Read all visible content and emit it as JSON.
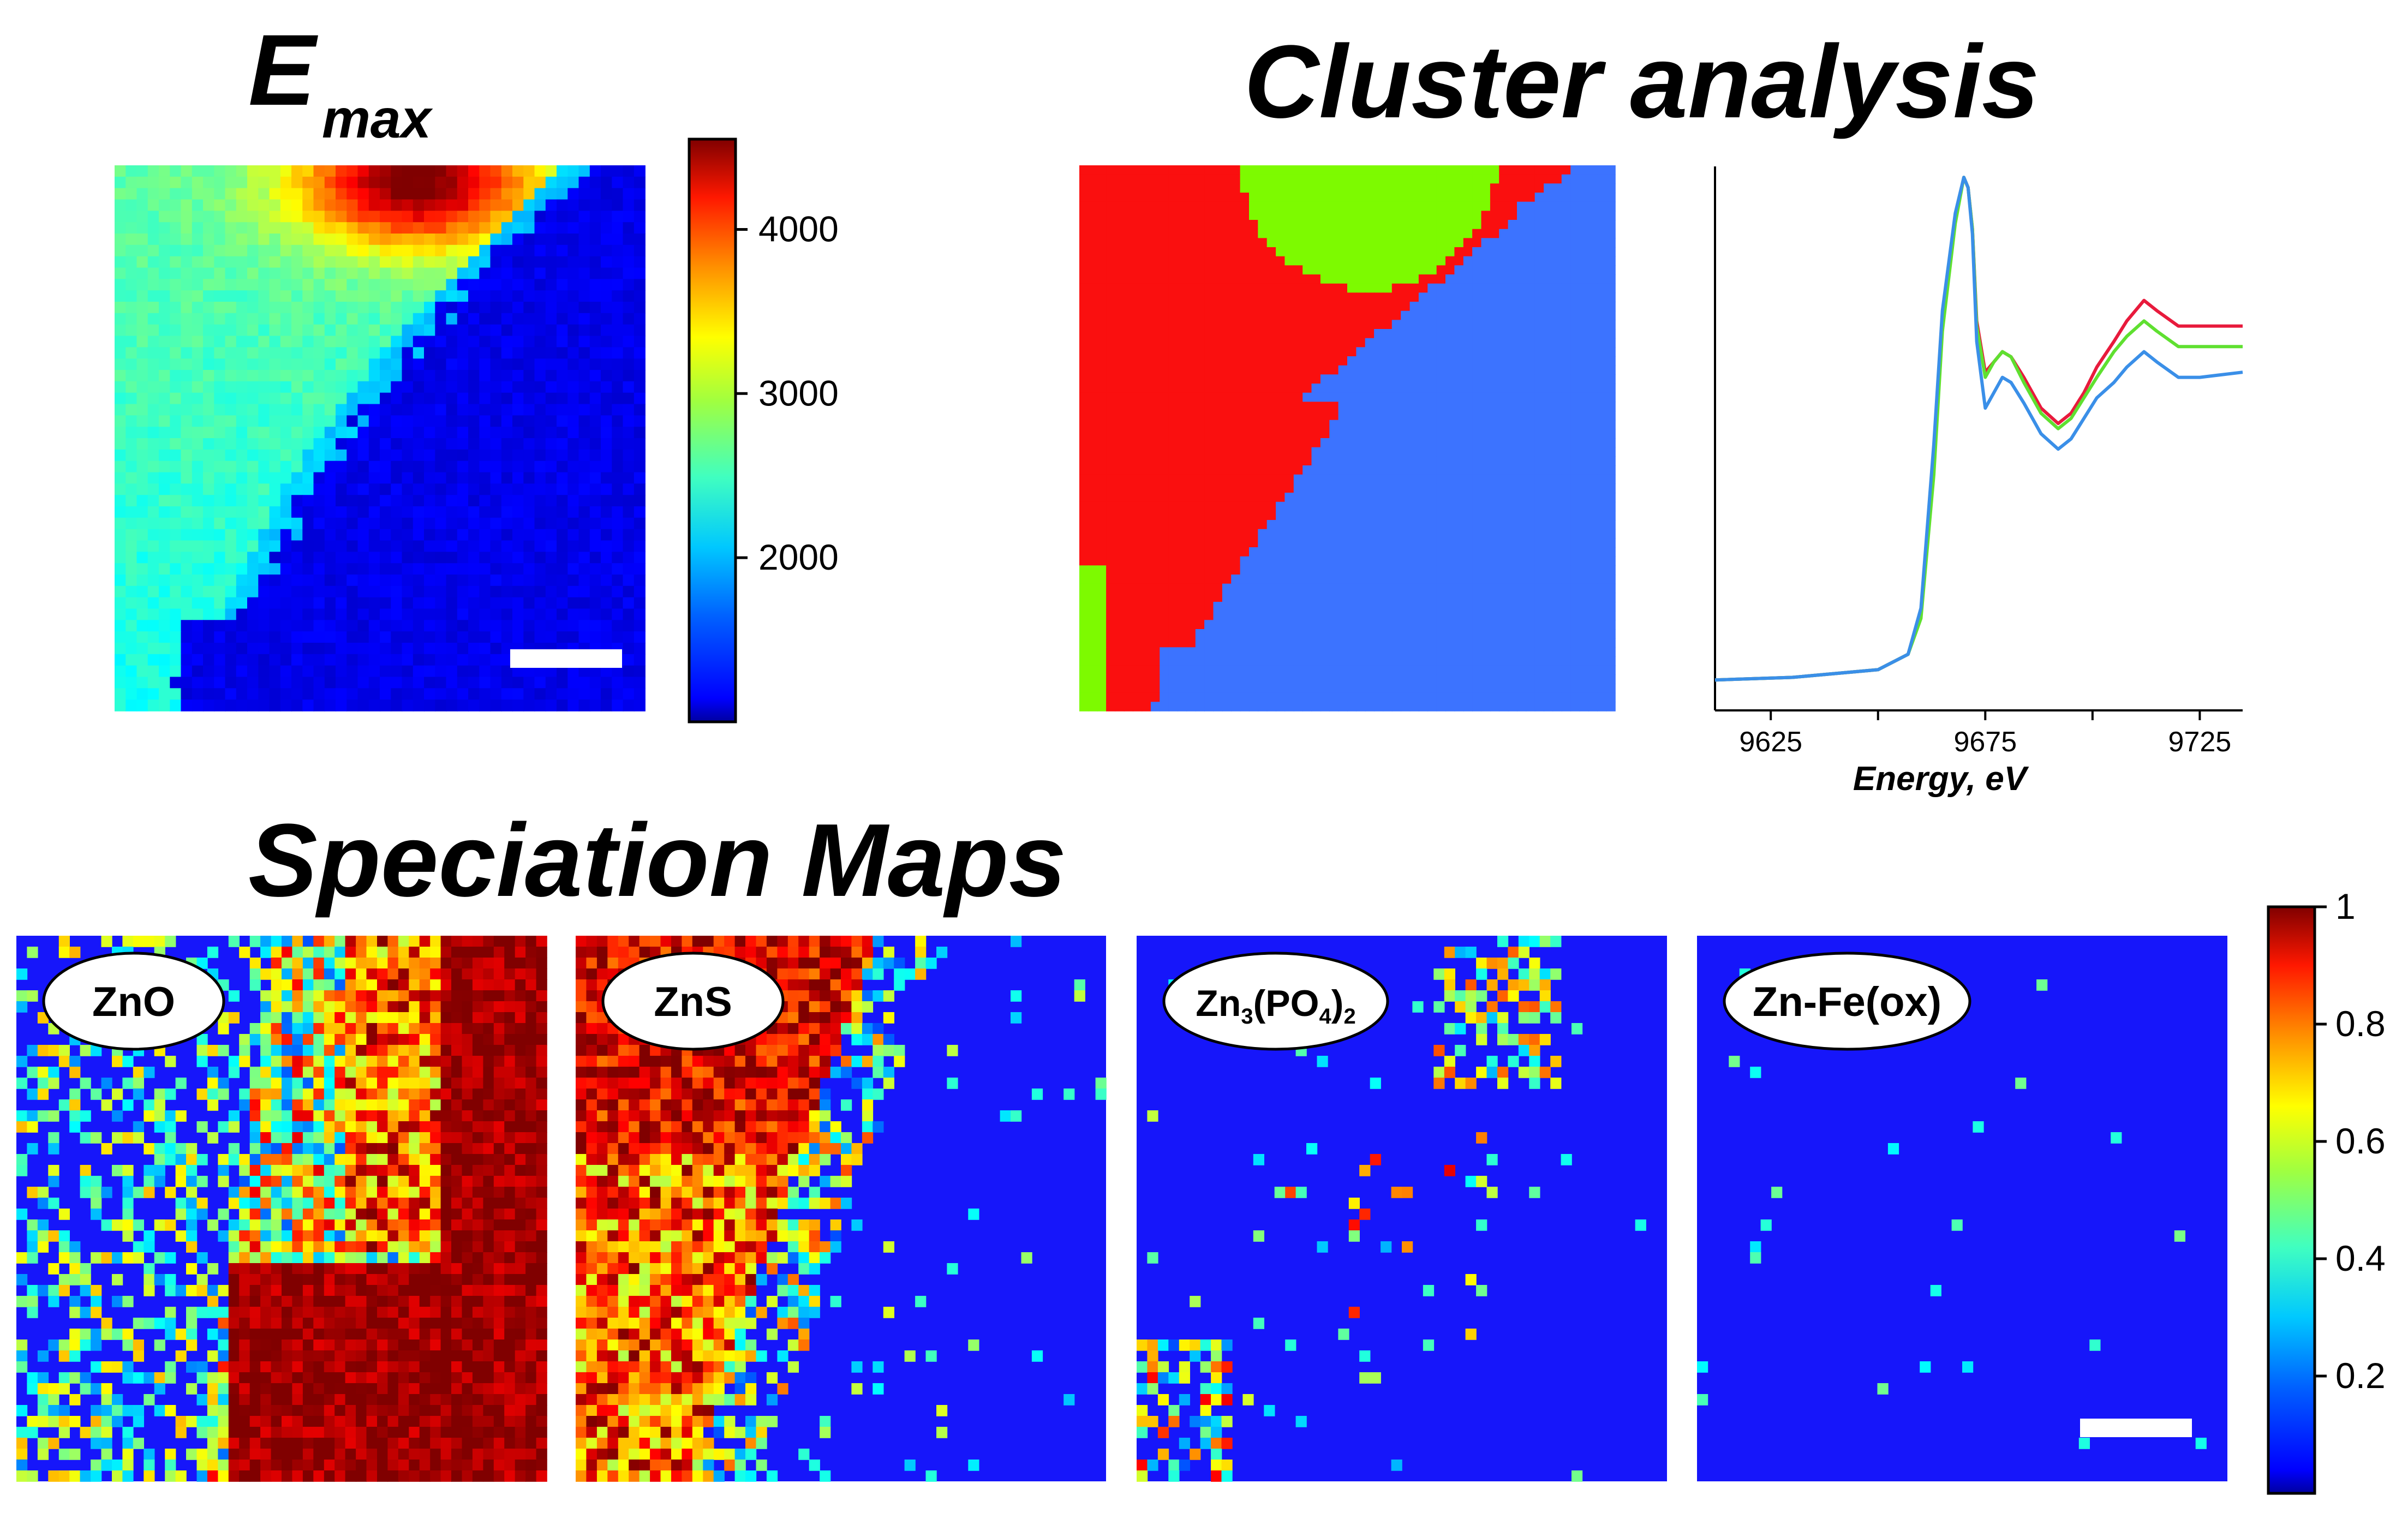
{
  "titles": {
    "emax_main": "E",
    "emax_sub": "max",
    "cluster": "Cluster analysis",
    "speciation": "Speciation Maps"
  },
  "colors": {
    "cluster_red": "#fa0f0f",
    "cluster_green": "#7dfa00",
    "cluster_blue": "#3c73ff",
    "map_background": "#1616fa",
    "scale_bar": "#ffffff"
  },
  "chart_data": [
    {
      "type": "heatmap",
      "id": "emax",
      "title": "Emax",
      "colormap": "jet",
      "colorbar": {
        "min": 1000,
        "max": 4550,
        "ticks": [
          4000,
          3000,
          2000
        ],
        "tick_labels": [
          "4000",
          "3000",
          "2000"
        ]
      },
      "has_scale_bar": true
    },
    {
      "type": "heatmap",
      "id": "cluster_map",
      "title": "Cluster analysis",
      "clusters": 3,
      "cluster_colors": [
        "red",
        "green",
        "blue"
      ]
    },
    {
      "type": "line",
      "id": "cluster_spectra",
      "xlabel": "Energy, eV",
      "ylabel": "",
      "xlim": [
        9612,
        9735
      ],
      "x_ticks": [
        9625,
        9675,
        9725
      ],
      "x_tick_labels": [
        "9625",
        "9675",
        "9725"
      ],
      "grid": false,
      "legend": false,
      "series": [
        {
          "color": "#e81a3c",
          "x": [
            9612,
            9630,
            9650,
            9657,
            9660,
            9663,
            9665,
            9668,
            9670,
            9671,
            9672,
            9673,
            9675,
            9677,
            9679,
            9681,
            9684,
            9688,
            9692,
            9695,
            9698,
            9701,
            9705,
            9708,
            9712,
            9715,
            9720,
            9725,
            9735
          ],
          "values": [
            0.02,
            0.025,
            0.04,
            0.07,
            0.15,
            0.45,
            0.72,
            0.92,
            1.0,
            0.98,
            0.9,
            0.72,
            0.62,
            0.64,
            0.66,
            0.65,
            0.61,
            0.55,
            0.52,
            0.54,
            0.58,
            0.63,
            0.68,
            0.72,
            0.76,
            0.74,
            0.71,
            0.71,
            0.71
          ]
        },
        {
          "color": "#5fe030",
          "x": [
            9612,
            9630,
            9650,
            9657,
            9660,
            9663,
            9665,
            9668,
            9670,
            9671,
            9672,
            9673,
            9675,
            9677,
            9679,
            9681,
            9684,
            9688,
            9692,
            9695,
            9698,
            9701,
            9705,
            9708,
            9712,
            9715,
            9720,
            9725,
            9735
          ],
          "values": [
            0.02,
            0.025,
            0.04,
            0.07,
            0.14,
            0.42,
            0.7,
            0.91,
            1.0,
            0.98,
            0.9,
            0.71,
            0.61,
            0.64,
            0.66,
            0.65,
            0.6,
            0.54,
            0.51,
            0.53,
            0.57,
            0.61,
            0.66,
            0.69,
            0.72,
            0.7,
            0.67,
            0.67,
            0.67
          ]
        },
        {
          "color": "#3a8fe8",
          "x": [
            9612,
            9630,
            9650,
            9657,
            9660,
            9663,
            9665,
            9668,
            9670,
            9671,
            9672,
            9673,
            9675,
            9677,
            9679,
            9681,
            9684,
            9688,
            9692,
            9695,
            9698,
            9701,
            9705,
            9708,
            9712,
            9715,
            9720,
            9725,
            9735
          ],
          "values": [
            0.02,
            0.025,
            0.04,
            0.07,
            0.16,
            0.48,
            0.74,
            0.93,
            1.0,
            0.98,
            0.89,
            0.68,
            0.55,
            0.58,
            0.61,
            0.6,
            0.56,
            0.5,
            0.47,
            0.49,
            0.53,
            0.57,
            0.6,
            0.63,
            0.66,
            0.64,
            0.61,
            0.61,
            0.62
          ]
        }
      ]
    },
    {
      "type": "heatmap",
      "id": "speciation_maps",
      "title": "Speciation Maps",
      "colormap": "jet",
      "colorbar": {
        "min": 0,
        "max": 1,
        "ticks": [
          1,
          0.8,
          0.6,
          0.4,
          0.2
        ],
        "tick_labels": [
          "1",
          "0.8",
          "0.6",
          "0.4",
          "0.2"
        ]
      },
      "panels": [
        {
          "label": "ZnO",
          "label_parts": []
        },
        {
          "label": "ZnS",
          "label_parts": []
        },
        {
          "label": "",
          "label_parts": [
            "Zn",
            "3",
            "(PO",
            "4",
            ")",
            "2"
          ]
        },
        {
          "label": "Zn-Fe(ox)",
          "label_parts": []
        }
      ],
      "has_scale_bar": true
    }
  ]
}
